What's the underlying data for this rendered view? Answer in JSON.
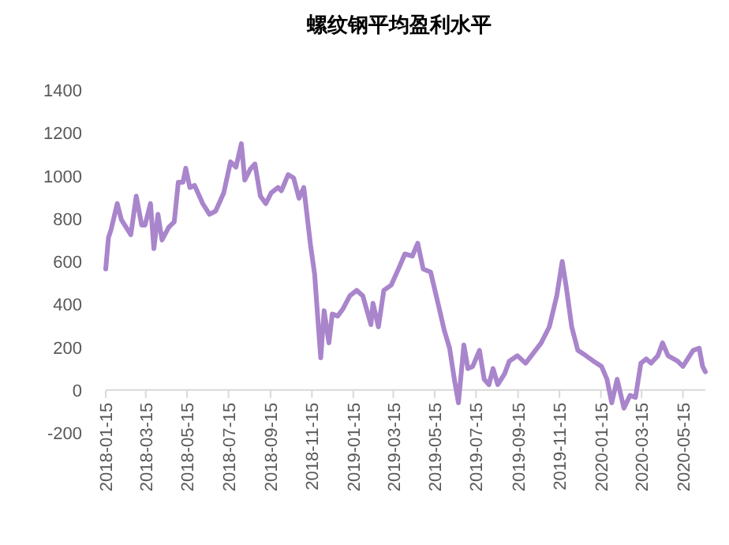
{
  "chart_data": {
    "type": "line",
    "title": "螺纹钢平均盈利水平",
    "x": [
      "2018-01-15",
      "2018-01-19",
      "2018-01-23",
      "2018-02-01",
      "2018-02-07",
      "2018-02-21",
      "2018-03-01",
      "2018-03-09",
      "2018-03-14",
      "2018-03-22",
      "2018-03-27",
      "2018-04-02",
      "2018-04-08",
      "2018-04-18",
      "2018-04-26",
      "2018-05-02",
      "2018-05-09",
      "2018-05-13",
      "2018-05-19",
      "2018-05-26",
      "2018-06-07",
      "2018-06-17",
      "2018-06-26",
      "2018-07-08",
      "2018-07-18",
      "2018-07-26",
      "2018-08-03",
      "2018-08-08",
      "2018-08-16",
      "2018-08-23",
      "2018-08-31",
      "2018-09-08",
      "2018-09-16",
      "2018-09-26",
      "2018-10-01",
      "2018-10-11",
      "2018-10-19",
      "2018-10-27",
      "2018-11-03",
      "2018-11-13",
      "2018-11-19",
      "2018-11-24",
      "2018-11-28",
      "2018-12-03",
      "2018-12-10",
      "2018-12-15",
      "2018-12-23",
      "2018-12-31",
      "2019-01-10",
      "2019-01-20",
      "2019-01-29",
      "2019-02-10",
      "2019-02-13",
      "2019-02-21",
      "2019-03-01",
      "2019-03-12",
      "2019-03-24",
      "2019-04-01",
      "2019-04-12",
      "2019-04-20",
      "2019-04-28",
      "2019-05-09",
      "2019-05-21",
      "2019-05-29",
      "2019-06-06",
      "2019-06-13",
      "2019-06-19",
      "2019-06-27",
      "2019-07-03",
      "2019-07-10",
      "2019-07-20",
      "2019-07-27",
      "2019-08-03",
      "2019-08-09",
      "2019-08-16",
      "2019-08-26",
      "2019-09-02",
      "2019-09-14",
      "2019-09-26",
      "2019-10-07",
      "2019-10-19",
      "2019-10-31",
      "2019-11-11",
      "2019-11-19",
      "2019-11-25",
      "2019-12-03",
      "2019-12-12",
      "2019-12-24",
      "2020-01-04",
      "2020-01-16",
      "2020-01-24",
      "2020-01-31",
      "2020-02-08",
      "2020-02-18",
      "2020-02-27",
      "2020-03-06",
      "2020-03-14",
      "2020-03-22",
      "2020-03-29",
      "2020-04-08",
      "2020-04-15",
      "2020-04-23",
      "2020-05-07",
      "2020-05-15",
      "2020-05-22",
      "2020-05-30",
      "2020-06-08",
      "2020-06-13",
      "2020-06-17"
    ],
    "series": [
      {
        "color": "#a985cc",
        "values": [
          565,
          710,
          750,
          870,
          795,
          725,
          905,
          770,
          770,
          870,
          660,
          820,
          700,
          760,
          785,
          970,
          970,
          1035,
          945,
          955,
          870,
          820,
          835,
          920,
          1065,
          1040,
          1150,
          980,
          1030,
          1055,
          905,
          870,
          920,
          945,
          930,
          1005,
          990,
          895,
          945,
          675,
          540,
          320,
          150,
          370,
          220,
          355,
          345,
          380,
          440,
          465,
          440,
          305,
          405,
          295,
          465,
          490,
          575,
          635,
          625,
          685,
          565,
          550,
          390,
          280,
          195,
          50,
          -60,
          210,
          100,
          110,
          185,
          50,
          25,
          100,
          25,
          75,
          135,
          160,
          125,
          170,
          220,
          295,
          440,
          600,
          480,
          295,
          185,
          160,
          135,
          110,
          50,
          -60,
          50,
          -85,
          -25,
          -35,
          125,
          145,
          125,
          160,
          220,
          160,
          135,
          110,
          145,
          185,
          195,
          110,
          85
        ]
      }
    ],
    "xlim": [
      "2018-01-15",
      "2020-06-17"
    ],
    "xticks": [
      "2018-01-15",
      "2018-03-15",
      "2018-05-15",
      "2018-07-15",
      "2018-09-15",
      "2018-11-15",
      "2019-01-15",
      "2019-03-15",
      "2019-05-15",
      "2019-07-15",
      "2019-09-15",
      "2019-11-15",
      "2020-01-15",
      "2020-03-15",
      "2020-05-15"
    ],
    "ylim": [
      -200,
      1400
    ],
    "yticks": [
      -200,
      0,
      200,
      400,
      600,
      800,
      1000,
      1200,
      1400
    ],
    "grid": false,
    "marker": "none",
    "line_style": "solid"
  }
}
